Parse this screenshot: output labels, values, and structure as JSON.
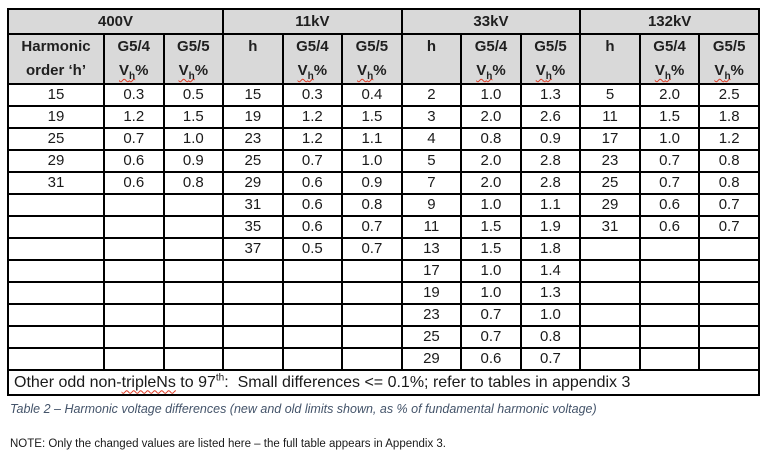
{
  "table": {
    "headers": {
      "first_col_line1": "Harmonic",
      "first_col_line2": "order ‘h’",
      "h": "h",
      "g54": "G5/4",
      "g55": "G5/5",
      "v": "V",
      "v_sub": "h",
      "pct": "%"
    },
    "num_body_rows": 13,
    "groups": [
      {
        "voltage": "400V",
        "rows": [
          [
            "15",
            "0.3",
            "0.5"
          ],
          [
            "19",
            "1.2",
            "1.5"
          ],
          [
            "25",
            "0.7",
            "1.0"
          ],
          [
            "29",
            "0.6",
            "0.9"
          ],
          [
            "31",
            "0.6",
            "0.8"
          ]
        ]
      },
      {
        "voltage": "11kV",
        "rows": [
          [
            "15",
            "0.3",
            "0.4"
          ],
          [
            "19",
            "1.2",
            "1.5"
          ],
          [
            "23",
            "1.2",
            "1.1"
          ],
          [
            "25",
            "0.7",
            "1.0"
          ],
          [
            "29",
            "0.6",
            "0.9"
          ],
          [
            "31",
            "0.6",
            "0.8"
          ],
          [
            "35",
            "0.6",
            "0.7"
          ],
          [
            "37",
            "0.5",
            "0.7"
          ]
        ]
      },
      {
        "voltage": "33kV",
        "rows": [
          [
            "2",
            "1.0",
            "1.3"
          ],
          [
            "3",
            "2.0",
            "2.6"
          ],
          [
            "4",
            "0.8",
            "0.9"
          ],
          [
            "5",
            "2.0",
            "2.8"
          ],
          [
            "7",
            "2.0",
            "2.8"
          ],
          [
            "9",
            "1.0",
            "1.1"
          ],
          [
            "11",
            "1.5",
            "1.9"
          ],
          [
            "13",
            "1.5",
            "1.8"
          ],
          [
            "17",
            "1.0",
            "1.4"
          ],
          [
            "19",
            "1.0",
            "1.3"
          ],
          [
            "23",
            "0.7",
            "1.0"
          ],
          [
            "25",
            "0.7",
            "0.8"
          ],
          [
            "29",
            "0.6",
            "0.7"
          ]
        ]
      },
      {
        "voltage": "132kV",
        "rows": [
          [
            "5",
            "2.0",
            "2.5"
          ],
          [
            "11",
            "1.5",
            "1.8"
          ],
          [
            "17",
            "1.0",
            "1.2"
          ],
          [
            "23",
            "0.7",
            "0.8"
          ],
          [
            "25",
            "0.7",
            "0.8"
          ],
          [
            "29",
            "0.6",
            "0.7"
          ],
          [
            "31",
            "0.6",
            "0.7"
          ]
        ]
      }
    ],
    "footer": {
      "part1": "Other odd non-",
      "misspelled": "tripleNs",
      "part2": " to 97",
      "sup": "th",
      "part3": ":  Small differences <= 0.1%; refer to tables in appendix 3"
    }
  },
  "caption": "Table 2 – Harmonic voltage differences (new and old limits shown, as % of fundamental harmonic voltage)",
  "note": "NOTE: Only the changed values are listed here – the full table appears in Appendix 3.",
  "colors": {
    "header_bg": "#d9d9d9",
    "border": "#000000",
    "caption_text": "#44546a",
    "spellcheck_squiggle": "#e03b24",
    "body_text": "#1a1a1a"
  }
}
